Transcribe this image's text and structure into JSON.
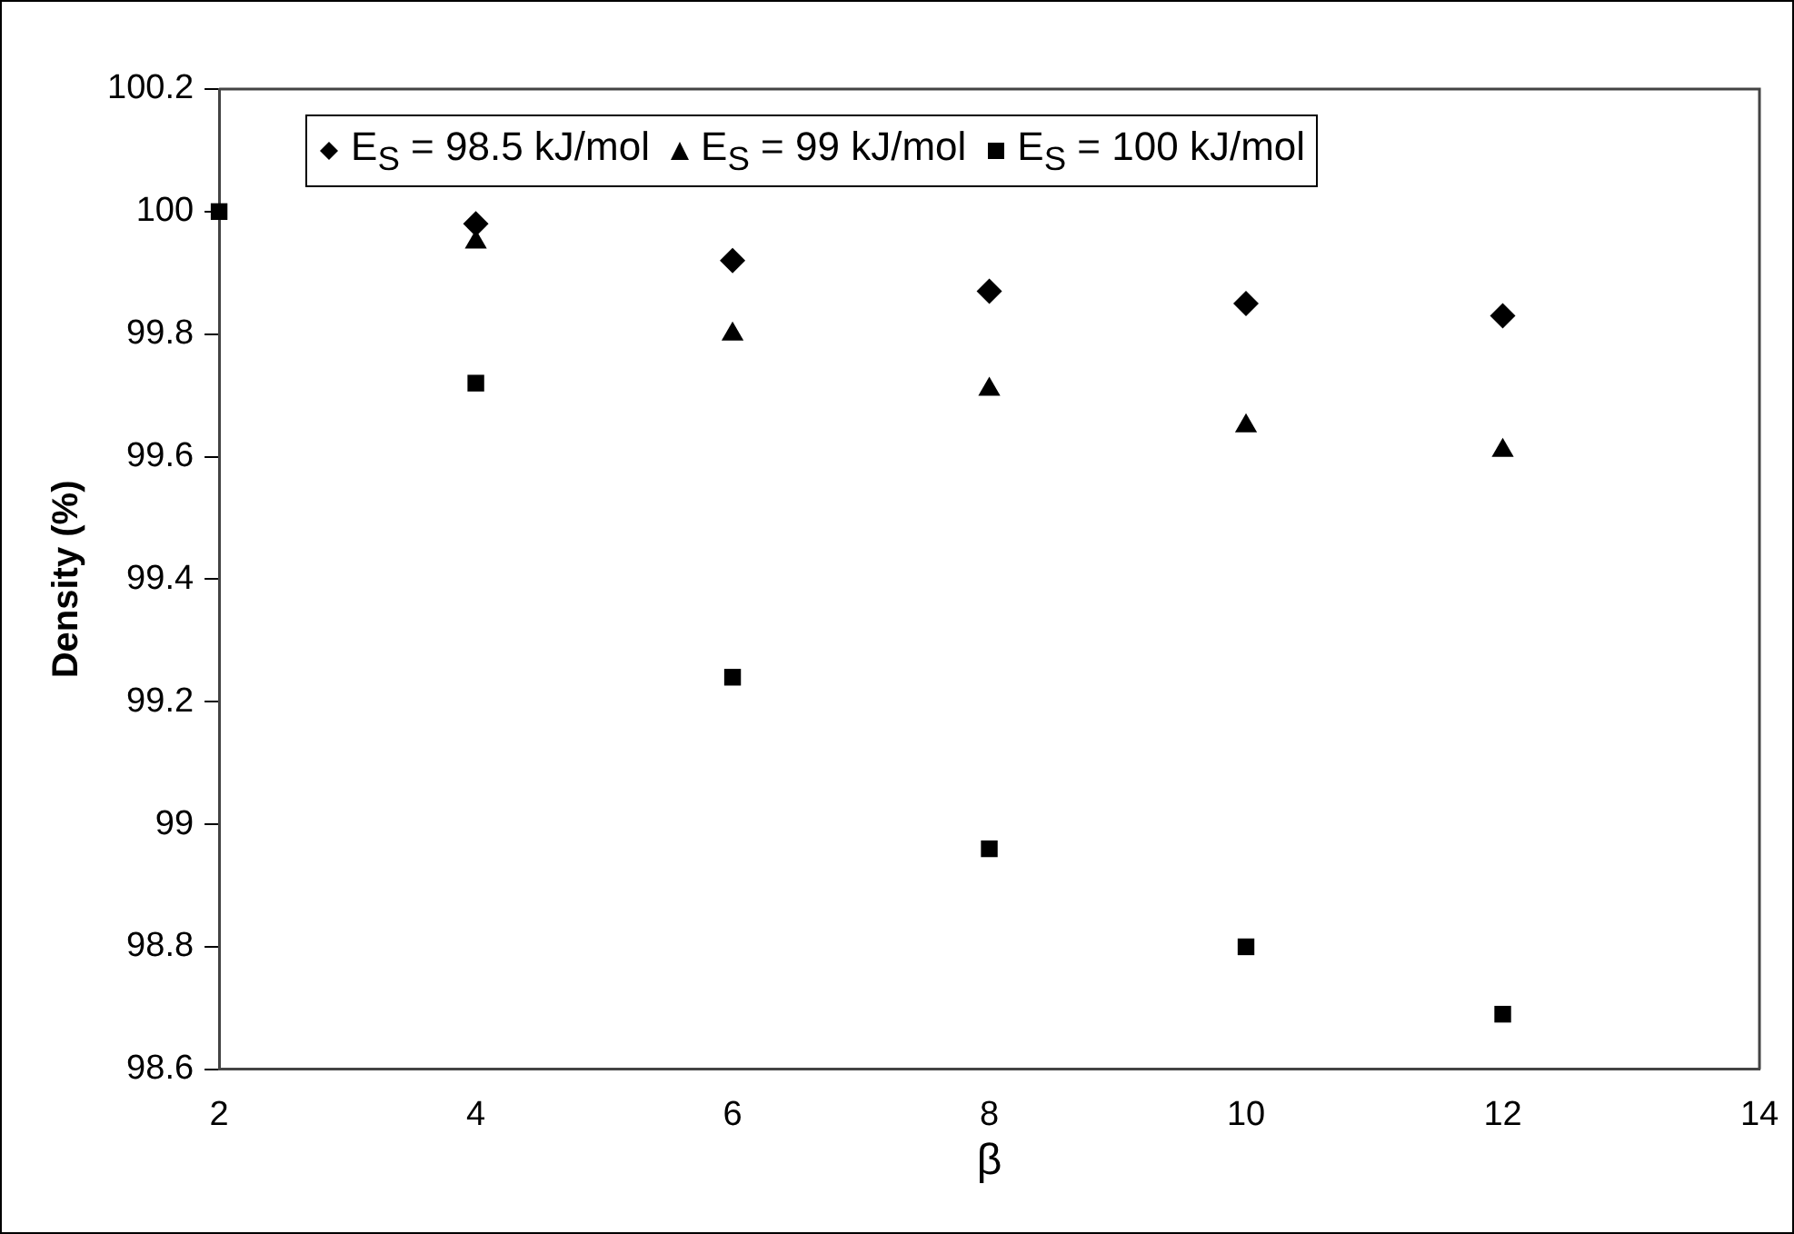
{
  "chart_data": {
    "type": "scatter",
    "xlabel": "β",
    "ylabel": "Density (%)",
    "x": [
      2,
      4,
      6,
      8,
      10,
      12
    ],
    "series": [
      {
        "name": "E$_{S}$ = 98.5 kJ/mol",
        "color": "#000000",
        "marker": "diamond",
        "values": [
          null,
          99.98,
          99.92,
          99.87,
          99.85,
          99.83
        ]
      },
      {
        "name": "E$_{S}$ = 99 kJ/mol",
        "color": "#000000",
        "marker": "triangle",
        "values": [
          null,
          99.95,
          99.8,
          99.71,
          99.65,
          99.61
        ]
      },
      {
        "name": "E$_{S}$ = 100 kJ/mol",
        "color": "#000000",
        "marker": "square",
        "values": [
          100,
          99.72,
          99.24,
          98.96,
          98.8,
          98.69
        ]
      }
    ],
    "xlim": [
      2,
      14
    ],
    "xticks": [
      2,
      4,
      6,
      8,
      10,
      12,
      14
    ],
    "ylim": [
      98.6,
      100.2
    ],
    "yticks": [
      98.6,
      98.8,
      99,
      99.2,
      99.4,
      99.6,
      99.8,
      100,
      100.2
    ],
    "grid": false,
    "legend": "top"
  }
}
